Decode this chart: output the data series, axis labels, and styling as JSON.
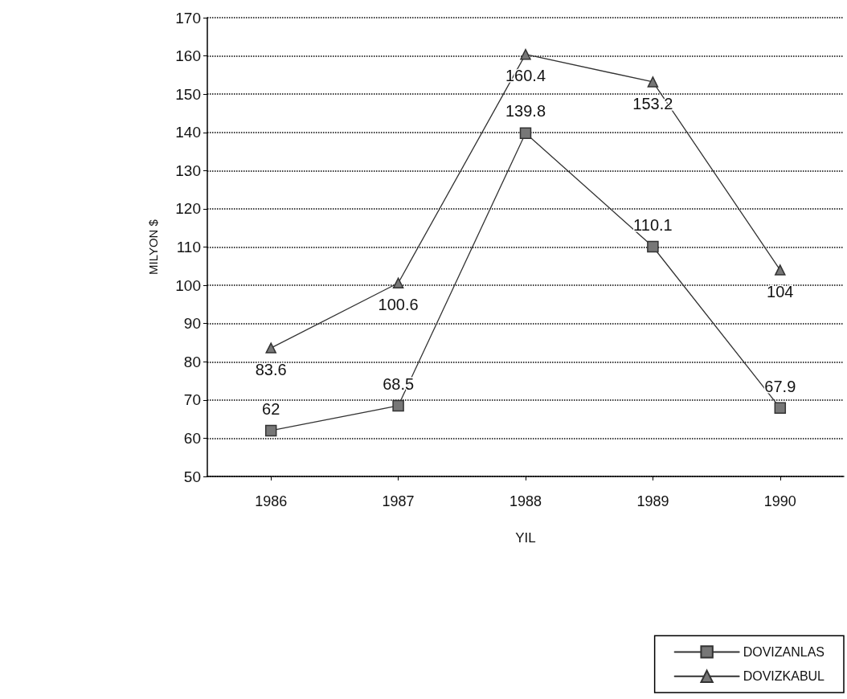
{
  "chart_data": {
    "type": "line",
    "xlabel": "YIL",
    "ylabel": "MILYON $",
    "categories": [
      "1986",
      "1987",
      "1988",
      "1989",
      "1990"
    ],
    "series": [
      {
        "name": "DOVIZANLAS",
        "color": "#333333",
        "marker": "square",
        "values": [
          62,
          68.5,
          139.8,
          110.1,
          67.9
        ]
      },
      {
        "name": "DOVIZKABUL",
        "color": "#333333",
        "marker": "triangle",
        "values": [
          83.6,
          100.6,
          160.4,
          153.2,
          104
        ]
      }
    ],
    "ylim": [
      50,
      170
    ],
    "yticks": [
      50,
      60,
      70,
      80,
      90,
      100,
      110,
      120,
      130,
      140,
      150,
      160,
      170
    ],
    "grid": "y",
    "legend": "bottom right",
    "data_labels": true,
    "line_style": "solid"
  }
}
